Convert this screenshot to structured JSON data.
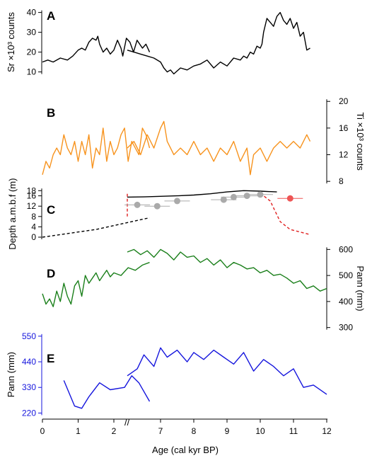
{
  "figure": {
    "xlabel": "Age (cal kyr BP)",
    "x_tick_labels": [
      "0",
      "1",
      "2",
      "7",
      "8",
      "9",
      "10",
      "11",
      "12"
    ],
    "axis_break_mark": "//"
  },
  "chart_data": [
    {
      "panel": "A",
      "type": "line",
      "color": "#000000",
      "ylabel": "Sr ×10³ counts",
      "y_axis_side": "left",
      "y_ticks": [
        10,
        20,
        30,
        40
      ],
      "ylim": [
        7,
        42
      ],
      "segments": [
        {
          "x": [
            0,
            0.15,
            0.3,
            0.5,
            0.7,
            0.85,
            1.0,
            1.1,
            1.2,
            1.3,
            1.4,
            1.5,
            1.55,
            1.6,
            1.7,
            1.8,
            1.9,
            2.0,
            2.1,
            2.2,
            2.25,
            2.35,
            2.45,
            2.55,
            2.65,
            2.8,
            2.9,
            3.0
          ],
          "y": [
            15,
            16,
            15,
            17,
            16,
            18,
            21,
            22,
            21,
            25,
            27,
            26,
            28,
            24,
            20,
            22,
            19,
            21,
            26,
            22,
            18,
            27,
            25,
            20,
            26,
            22,
            24,
            20
          ]
        },
        {
          "x": [
            6.0,
            6.2,
            6.4,
            6.6,
            6.8,
            7.0,
            7.1,
            7.2,
            7.3,
            7.4,
            7.6,
            7.8,
            8.0,
            8.2,
            8.4,
            8.6,
            8.8,
            9.0,
            9.2,
            9.4,
            9.5,
            9.6,
            9.7,
            9.8,
            9.9,
            10.0,
            10.05,
            10.1,
            10.2,
            10.3,
            10.4,
            10.5,
            10.6,
            10.7,
            10.8,
            10.9,
            11.0,
            11.1,
            11.2,
            11.3,
            11.4,
            11.5
          ],
          "y": [
            21,
            20,
            19,
            18,
            17,
            15,
            12,
            10,
            11,
            9,
            12,
            11,
            13,
            14,
            16,
            12,
            15,
            13,
            17,
            16,
            18,
            17,
            20,
            19,
            23,
            22,
            24,
            30,
            37,
            35,
            33,
            38,
            40,
            36,
            34,
            37,
            32,
            35,
            28,
            30,
            21,
            22
          ]
        }
      ]
    },
    {
      "panel": "B",
      "type": "line",
      "color": "#f7931e",
      "ylabel": "Ti ×10³ counts",
      "y_axis_side": "right",
      "y_ticks": [
        8,
        12,
        16,
        20
      ],
      "ylim": [
        6,
        23
      ],
      "segments": [
        {
          "x": [
            0,
            0.1,
            0.2,
            0.3,
            0.4,
            0.5,
            0.6,
            0.7,
            0.8,
            0.9,
            1.0,
            1.1,
            1.2,
            1.3,
            1.4,
            1.5,
            1.6,
            1.7,
            1.8,
            1.9,
            2.0,
            2.1,
            2.2,
            2.3,
            2.4,
            2.5,
            2.6,
            2.7,
            2.8,
            2.9,
            3.0
          ],
          "y": [
            9,
            11,
            10,
            12,
            13,
            12,
            15,
            13,
            12,
            14,
            11,
            14,
            12,
            15,
            10,
            13,
            12,
            16,
            11,
            14,
            12,
            13,
            15,
            16,
            11,
            14,
            13,
            12,
            16,
            15,
            13
          ]
        },
        {
          "x": [
            6.0,
            6.2,
            6.4,
            6.6,
            6.8,
            7.0,
            7.1,
            7.2,
            7.3,
            7.4,
            7.6,
            7.8,
            8.0,
            8.2,
            8.4,
            8.6,
            8.8,
            9.0,
            9.2,
            9.4,
            9.6,
            9.7,
            9.8,
            10.0,
            10.2,
            10.4,
            10.6,
            10.8,
            11.0,
            11.2,
            11.4,
            11.5
          ],
          "y": [
            13,
            14,
            12,
            15,
            13,
            16,
            17,
            14,
            13,
            12,
            13,
            12,
            14,
            12,
            13,
            11,
            13,
            12,
            14,
            11,
            13,
            9,
            12,
            13,
            11,
            13,
            14,
            13,
            14,
            13,
            15,
            14
          ]
        }
      ]
    },
    {
      "panel": "C",
      "type": "scatter",
      "ylabel": "Depth a.m.b.f (m)",
      "y_axis_side": "left",
      "y_ticks": [
        0,
        4,
        8,
        12,
        16,
        18
      ],
      "ylim": [
        0,
        20
      ],
      "lines": [
        {
          "style": "dashed",
          "color": "#000000",
          "x": [
            0,
            0.5,
            1.0,
            1.5,
            2.0,
            2.5,
            3.0
          ],
          "y": [
            0,
            1,
            2,
            3,
            4.5,
            6,
            7.5
          ]
        },
        {
          "style": "solid",
          "color": "#000000",
          "x": [
            6.0,
            6.5,
            7.0,
            7.5,
            8.0,
            8.5,
            9.0,
            9.5,
            10.0,
            10.5
          ],
          "y": [
            15.5,
            15.6,
            15.8,
            16,
            16.3,
            16.8,
            17.5,
            18,
            17.8,
            17.5
          ]
        },
        {
          "style": "dashed",
          "color": "#e02020",
          "x": [
            6.0,
            6.0
          ],
          "y": [
            8,
            17
          ]
        },
        {
          "style": "dashed",
          "color": "#e02020",
          "x": [
            10.0,
            10.3,
            10.6,
            10.9,
            11.2,
            11.5
          ],
          "y": [
            17,
            14,
            6,
            3,
            2,
            1
          ]
        }
      ],
      "points": [
        {
          "x": 6.3,
          "y": 12.5,
          "color": "#aaaaaa"
        },
        {
          "x": 6.9,
          "y": 12,
          "color": "#aaaaaa"
        },
        {
          "x": 7.5,
          "y": 14,
          "color": "#aaaaaa"
        },
        {
          "x": 8.9,
          "y": 14.5,
          "color": "#aaaaaa"
        },
        {
          "x": 9.2,
          "y": 15.5,
          "color": "#aaaaaa"
        },
        {
          "x": 9.6,
          "y": 16,
          "color": "#aaaaaa"
        },
        {
          "x": 10.0,
          "y": 16.5,
          "color": "#aaaaaa"
        },
        {
          "x": 10.9,
          "y": 15,
          "color": "#ee5555"
        }
      ]
    },
    {
      "panel": "D",
      "type": "line",
      "color": "#1a7f1a",
      "ylabel": "Pann (mm)",
      "y_axis_side": "right",
      "y_ticks": [
        300,
        400,
        500,
        600
      ],
      "ylim": [
        280,
        620
      ],
      "segments": [
        {
          "x": [
            0,
            0.1,
            0.2,
            0.3,
            0.4,
            0.5,
            0.6,
            0.7,
            0.8,
            0.9,
            1.0,
            1.1,
            1.2,
            1.3,
            1.4,
            1.5,
            1.6,
            1.7,
            1.8,
            1.9,
            2.0,
            2.2,
            2.4,
            2.6,
            2.8,
            3.0
          ],
          "y": [
            430,
            390,
            410,
            380,
            440,
            400,
            470,
            420,
            390,
            460,
            480,
            420,
            500,
            470,
            490,
            510,
            480,
            500,
            520,
            495,
            510,
            500,
            530,
            520,
            540,
            550
          ]
        },
        {
          "x": [
            6.0,
            6.2,
            6.4,
            6.6,
            6.8,
            7.0,
            7.2,
            7.4,
            7.6,
            7.8,
            8.0,
            8.2,
            8.4,
            8.6,
            8.8,
            9.0,
            9.2,
            9.4,
            9.6,
            9.8,
            10.0,
            10.2,
            10.4,
            10.6,
            10.8,
            11.0,
            11.2,
            11.4,
            11.6,
            11.8,
            12.0
          ],
          "y": [
            590,
            600,
            580,
            595,
            570,
            600,
            585,
            560,
            590,
            570,
            575,
            550,
            565,
            540,
            560,
            530,
            550,
            540,
            525,
            530,
            510,
            520,
            500,
            505,
            490,
            470,
            480,
            450,
            460,
            440,
            450
          ]
        }
      ]
    },
    {
      "panel": "E",
      "type": "line",
      "color": "#1515dd",
      "ylabel": "Pann (mm)",
      "y_axis_side": "left",
      "y_ticks": [
        220,
        330,
        440,
        550
      ],
      "ylim": [
        200,
        580
      ],
      "segments": [
        {
          "x": [
            0.6,
            0.9,
            1.1,
            1.3,
            1.6,
            1.9,
            2.3,
            2.5,
            2.7,
            3.0
          ],
          "y": [
            360,
            250,
            240,
            290,
            350,
            320,
            330,
            380,
            350,
            270
          ]
        },
        {
          "x": [
            6.0,
            6.3,
            6.5,
            6.8,
            7.0,
            7.2,
            7.5,
            7.8,
            8.0,
            8.3,
            8.6,
            8.9,
            9.2,
            9.5,
            9.8,
            10.1,
            10.4,
            10.7,
            11.0,
            11.3,
            11.6,
            12.0
          ],
          "y": [
            380,
            410,
            470,
            420,
            500,
            460,
            490,
            440,
            480,
            450,
            490,
            460,
            430,
            480,
            400,
            450,
            420,
            380,
            410,
            330,
            340,
            300
          ]
        }
      ]
    }
  ]
}
